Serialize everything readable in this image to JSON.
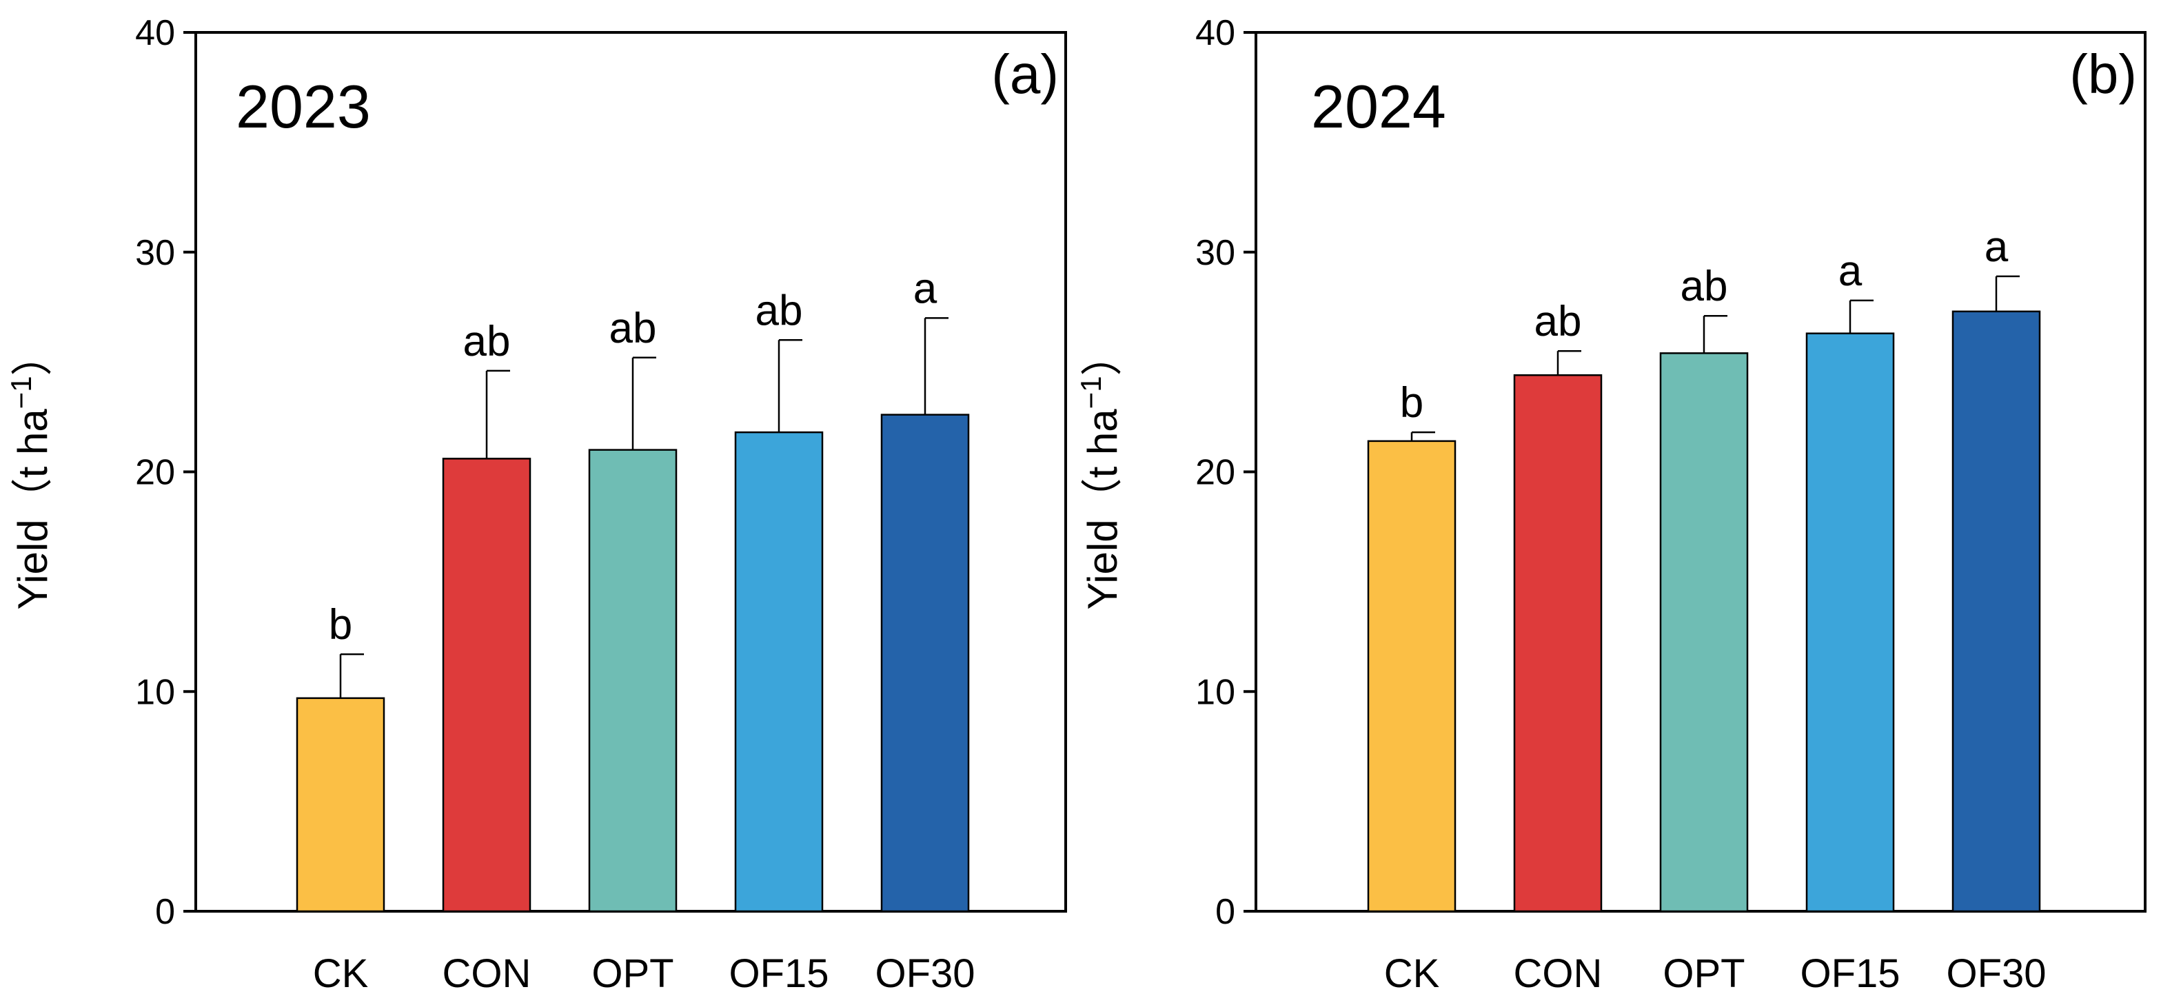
{
  "chart_data": [
    {
      "type": "bar",
      "panel_label": "(a)",
      "year": "2023",
      "ylabel": "Yield（t ha",
      "ylabel_sup": "−1",
      "ylabel_close": "）",
      "ylim": [
        0,
        40
      ],
      "yticks": [
        "0",
        "10",
        "20",
        "30",
        "40"
      ],
      "categories": [
        "CK",
        "CON",
        "OPT",
        "OF15",
        "OF30"
      ],
      "values": [
        9.7,
        20.6,
        21.0,
        21.8,
        22.6
      ],
      "errors": [
        2.0,
        4.0,
        4.2,
        4.2,
        4.4
      ],
      "significance": [
        "b",
        "ab",
        "ab",
        "ab",
        "a"
      ],
      "colors": [
        "#FBBF45",
        "#DE3B3B",
        "#6FBDB4",
        "#3CA5DA",
        "#2463AA"
      ]
    },
    {
      "type": "bar",
      "panel_label": "(b)",
      "year": "2024",
      "ylabel": "Yield（t ha",
      "ylabel_sup": "−1",
      "ylabel_close": "）",
      "ylim": [
        0,
        40
      ],
      "yticks": [
        "0",
        "10",
        "20",
        "30",
        "40"
      ],
      "categories": [
        "CK",
        "CON",
        "OPT",
        "OF15",
        "OF30"
      ],
      "values": [
        21.4,
        24.4,
        25.4,
        26.3,
        27.3
      ],
      "errors": [
        0.4,
        1.1,
        1.7,
        1.5,
        1.6
      ],
      "significance": [
        "b",
        "ab",
        "ab",
        "a",
        "a"
      ],
      "colors": [
        "#FBBF45",
        "#DE3B3B",
        "#6FBDB4",
        "#3CA5DA",
        "#2463AA"
      ]
    }
  ]
}
